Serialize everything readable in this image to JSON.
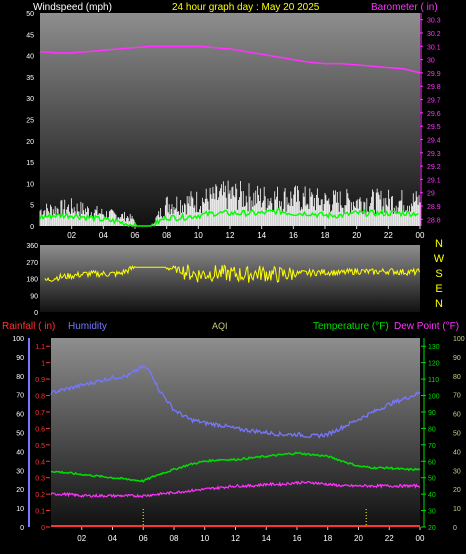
{
  "theme": {
    "background": "#000000",
    "plot_gradient_top": "#8e8e8e",
    "plot_gradient_bottom": "#111111",
    "wind_gust_color": "#ffffff",
    "wind_avg_color": "#00ff00",
    "barometer_color": "#ff33ff",
    "direction_color": "#ffff00",
    "rain_color": "#ff3333",
    "humidity_color": "#7777ff",
    "temperature_color": "#00dd00",
    "dewpoint_color": "#ff33ff",
    "aqi_color": "#cccc88",
    "axis_text_color": "#ffffff"
  },
  "chart_data": [
    {
      "type": "line",
      "panel": "wind-barometer",
      "title": "24 hour graph day : May 20 2025",
      "left_label": "Windspeed (mph)",
      "right_label": "Barometer ( in)",
      "x_tick_labels": [
        "02",
        "04",
        "06",
        "08",
        "10",
        "12",
        "14",
        "16",
        "18",
        "20",
        "22",
        "00"
      ],
      "left_tick_labels": [
        "50",
        "45",
        "40",
        "35",
        "30",
        "25",
        "20",
        "15",
        "10",
        "5",
        "0"
      ],
      "right_tick_labels": [
        "30.3",
        "30.2",
        "30.1",
        "30",
        "29.9",
        "29.8",
        "29.7",
        "29.6",
        "29.5",
        "29.4",
        "29.3",
        "29.2",
        "29.1",
        "29",
        "28.9",
        "28.8"
      ],
      "left_ylim": [
        0,
        50
      ],
      "right_ylim": [
        28.75,
        30.35
      ],
      "x_range_hours": [
        0,
        24
      ],
      "calm_hours": [
        [
          6.0,
          7.0
        ]
      ],
      "series": [
        {
          "name": "Barometer",
          "axis": "right",
          "x": [
            0,
            1,
            2,
            3,
            4,
            5,
            6,
            7,
            8,
            9,
            10,
            11,
            12,
            13,
            14,
            15,
            16,
            17,
            18,
            19,
            20,
            21,
            22,
            23,
            24
          ],
          "values": [
            30.06,
            30.05,
            30.05,
            30.06,
            30.07,
            30.08,
            30.09,
            30.1,
            30.1,
            30.1,
            30.1,
            30.09,
            30.08,
            30.06,
            30.04,
            30.02,
            30.0,
            29.98,
            29.97,
            29.97,
            29.96,
            29.95,
            29.94,
            29.93,
            29.9
          ]
        },
        {
          "name": "Wind gust",
          "axis": "left",
          "x": [
            0,
            2,
            4,
            5.5,
            7,
            8,
            10,
            12,
            14,
            16,
            18,
            20,
            22,
            24
          ],
          "values": [
            5,
            6,
            4,
            3,
            0,
            7,
            8,
            10,
            9,
            9,
            8,
            8,
            8,
            8
          ]
        },
        {
          "name": "Wind average",
          "axis": "left",
          "x": [
            0,
            1,
            2,
            3,
            4,
            5,
            6,
            7,
            8,
            9,
            10,
            11,
            12,
            13,
            14,
            15,
            16,
            17,
            18,
            19,
            20,
            21,
            22,
            23,
            24
          ],
          "values": [
            2,
            2.5,
            2.5,
            2,
            1.5,
            1,
            0,
            0,
            2,
            2,
            2.5,
            3,
            3,
            3,
            3,
            3.5,
            3,
            3,
            2.5,
            2.5,
            3,
            3,
            3,
            3,
            3
          ]
        }
      ]
    },
    {
      "type": "scatter",
      "panel": "wind-direction",
      "y_tick_labels": [
        "360",
        "270",
        "180",
        "90",
        "0"
      ],
      "ylim": [
        0,
        360
      ],
      "compass_labels": [
        "N",
        "W",
        "S",
        "E",
        "N"
      ],
      "x_range_hours": [
        0,
        24
      ],
      "series": [
        {
          "name": "Wind direction",
          "x": [
            0,
            1,
            2,
            3,
            4,
            5,
            6,
            7,
            8,
            9,
            10,
            11,
            12,
            13,
            14,
            15,
            16,
            17,
            18,
            19,
            20,
            21,
            22,
            23,
            24
          ],
          "values": [
            160,
            185,
            195,
            205,
            205,
            205,
            240,
            240,
            240,
            220,
            200,
            210,
            205,
            200,
            210,
            200,
            205,
            210,
            215,
            210,
            220,
            215,
            220,
            215,
            215
          ]
        }
      ]
    },
    {
      "type": "line",
      "panel": "rain-humidity-temp",
      "labels": {
        "rainfall": "Rainfall ( in)",
        "humidity": "Humidity",
        "aqi": "AQI",
        "temperature": "Temperature (°F)",
        "dewpoint": "Dew Point (°F)"
      },
      "humidity_tick_labels": [
        "100",
        "90",
        "80",
        "70",
        "60",
        "50",
        "40",
        "30",
        "20",
        "10",
        "0"
      ],
      "rain_tick_labels": [
        "1.1",
        "1",
        "0.9",
        "0.8",
        "0.7",
        "0.6",
        "0.5",
        "0.4",
        "0.3",
        "0.2",
        "0.1",
        "0"
      ],
      "temperature_tick_labels": [
        "130",
        "120",
        "110",
        "100",
        "90",
        "80",
        "70",
        "60",
        "50",
        "40",
        "30",
        "20"
      ],
      "far_right_tick_labels": [
        "100",
        "90",
        "80",
        "70",
        "60",
        "50",
        "40",
        "30",
        "20",
        "10",
        "0"
      ],
      "x_tick_labels": [
        "02",
        "04",
        "06",
        "08",
        "10",
        "12",
        "14",
        "16",
        "18",
        "20",
        "22",
        "00"
      ],
      "humidity_ylim": [
        0,
        100
      ],
      "rain_ylim": [
        0,
        1.15
      ],
      "temperature_ylim": [
        20,
        135
      ],
      "x_range_hours": [
        0,
        24
      ],
      "series": [
        {
          "name": "Humidity",
          "axis": "humidity",
          "x": [
            0,
            1,
            2,
            3,
            4,
            5,
            6,
            6.5,
            7,
            8,
            9,
            10,
            11,
            12,
            13,
            14,
            15,
            16,
            17,
            18,
            19,
            20,
            21,
            22,
            23,
            24
          ],
          "values": [
            71,
            73,
            75,
            77,
            79,
            80,
            85,
            82,
            73,
            62,
            57,
            55,
            54,
            52,
            51,
            50,
            49,
            49,
            48,
            49,
            53,
            57,
            61,
            65,
            68,
            71
          ]
        },
        {
          "name": "Temperature",
          "axis": "temperature",
          "x": [
            0,
            1,
            2,
            3,
            4,
            5,
            6,
            7,
            8,
            9,
            10,
            11,
            12,
            13,
            14,
            15,
            16,
            17,
            18,
            19,
            20,
            21,
            22,
            23,
            24
          ],
          "values": [
            54,
            53,
            52,
            51,
            50,
            49,
            48,
            52,
            55,
            58,
            60,
            61,
            61,
            62,
            63,
            64,
            65,
            64,
            63,
            60,
            57,
            56,
            56,
            55,
            55
          ]
        },
        {
          "name": "Dew Point",
          "axis": "temperature",
          "x": [
            0,
            1,
            2,
            3,
            4,
            5,
            6,
            7,
            8,
            9,
            10,
            11,
            12,
            13,
            14,
            15,
            16,
            17,
            18,
            19,
            20,
            21,
            22,
            23,
            24
          ],
          "values": [
            40,
            40,
            39,
            39,
            39,
            39,
            39,
            40,
            41,
            42,
            43,
            44,
            45,
            45,
            46,
            46,
            47,
            47,
            46,
            45,
            45,
            45,
            45,
            45,
            45
          ]
        },
        {
          "name": "Rainfall",
          "axis": "rain",
          "x": [
            0,
            24
          ],
          "values": [
            0,
            0
          ]
        }
      ],
      "marker_hours": [
        6.0,
        20.5
      ]
    }
  ]
}
